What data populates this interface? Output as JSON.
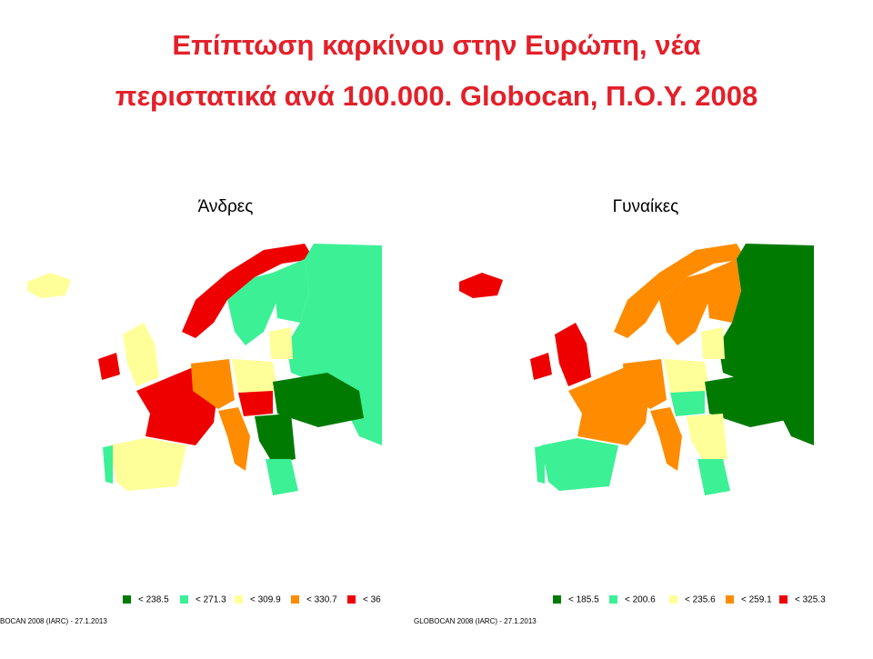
{
  "title_lines": [
    "Επίπτωση καρκίνου στην Ευρώπη, νέα",
    "περιστατικά ανά 100.000.  Globocan, Π.Ο.Υ.  2008"
  ],
  "maps": [
    {
      "label": "Άνδρες",
      "source": "BOCAN 2008 (IARC) - 27.1.2013",
      "legend": [
        {
          "label": "< 238.5",
          "color": "#007a00"
        },
        {
          "label": "< 271.3",
          "color": "#3cf096"
        },
        {
          "label": "< 309.9",
          "color": "#ffff99"
        },
        {
          "label": "< 330.7",
          "color": "#ff8c00"
        },
        {
          "label": "< 36",
          "color": "#ee0000"
        }
      ]
    },
    {
      "label": "Γυναίκες",
      "source": "GLOBOCAN 2008 (IARC) - 27.1.2013",
      "legend": [
        {
          "label": "< 185.5",
          "color": "#007a00"
        },
        {
          "label": "< 200.6",
          "color": "#3cf096"
        },
        {
          "label": "< 235.6",
          "color": "#ffff99"
        },
        {
          "label": "< 259.1",
          "color": "#ff8c00"
        },
        {
          "label": "< 325.3",
          "color": "#ee0000"
        }
      ]
    }
  ]
}
